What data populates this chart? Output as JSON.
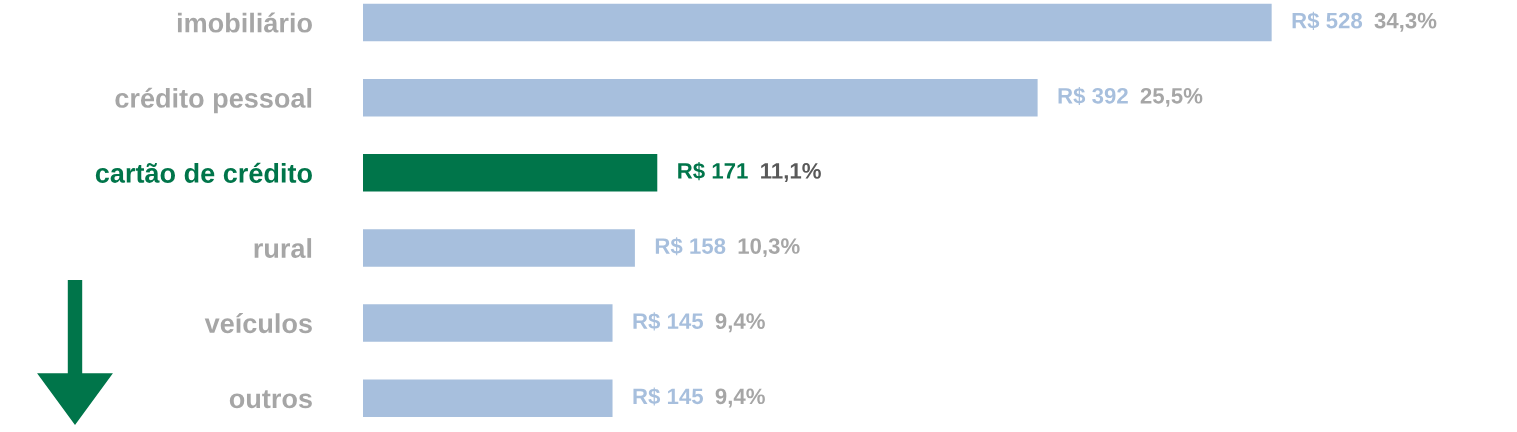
{
  "chart_data": {
    "type": "bar",
    "orientation": "horizontal",
    "categories": [
      "imobiliário",
      "crédito pessoal",
      "cartão de crédito",
      "rural",
      "veículos",
      "outros"
    ],
    "values": [
      528,
      392,
      171,
      158,
      145,
      145
    ],
    "colors": [
      "#a7bfdd",
      "#a7bfdd",
      "#00754a",
      "#a7bfdd",
      "#a7bfdd",
      "#a7bfdd"
    ],
    "value_labels": [
      "R$ 528",
      "R$ 392",
      "R$ 171",
      "R$ 158",
      "R$ 145",
      "R$ 145"
    ],
    "annotations": [
      "34,3%",
      "25,5%",
      "11,1%",
      "10,3%",
      "9,4%",
      "9,4%"
    ],
    "grid": false,
    "legend": false
  }
}
